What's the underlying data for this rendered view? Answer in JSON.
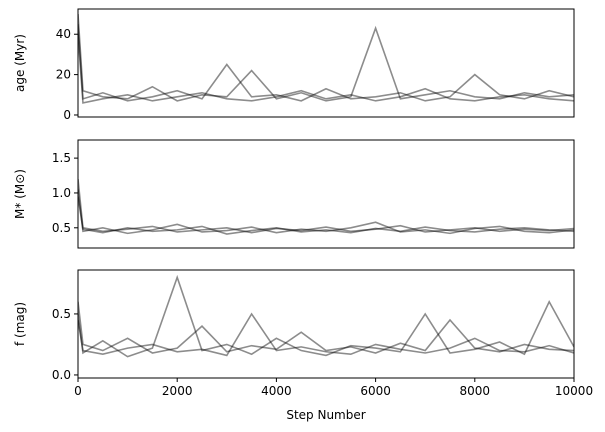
{
  "chart_data": [
    {
      "type": "line",
      "y_label": "age (Myr)",
      "x": [
        0,
        100,
        500,
        1000,
        1500,
        2000,
        2500,
        3000,
        3500,
        4000,
        4500,
        5000,
        5500,
        6000,
        6500,
        7000,
        7500,
        8000,
        8500,
        9000,
        9500,
        10000
      ],
      "xlim": [
        0,
        10000
      ],
      "ylim": [
        -1,
        52.5
      ],
      "yticks": [
        0,
        20,
        40
      ],
      "series": [
        {
          "color": "#000000",
          "values": [
            50,
            12,
            9,
            8,
            14,
            7,
            10,
            9,
            22,
            8,
            11,
            7,
            9,
            43,
            8,
            10,
            12,
            9,
            8,
            11,
            9,
            10
          ]
        },
        {
          "color": "#000000",
          "values": [
            45,
            8,
            11,
            7,
            9,
            12,
            8,
            25,
            9,
            10,
            7,
            13,
            8,
            9,
            11,
            7,
            9,
            20,
            10,
            8,
            12,
            9
          ]
        },
        {
          "color": "#000000",
          "values": [
            40,
            6,
            8,
            10,
            7,
            9,
            11,
            8,
            7,
            9,
            12,
            8,
            10,
            7,
            9,
            13,
            8,
            7,
            9,
            10,
            8,
            7
          ]
        }
      ]
    },
    {
      "type": "line",
      "y_label": "M* (M⊙)",
      "x": [
        0,
        100,
        500,
        1000,
        1500,
        2000,
        2500,
        3000,
        3500,
        4000,
        4500,
        5000,
        5500,
        6000,
        6500,
        7000,
        7500,
        8000,
        8500,
        9000,
        9500,
        10000
      ],
      "xlim": [
        0,
        10000
      ],
      "ylim": [
        0.21,
        1.76
      ],
      "yticks": [
        0.5,
        {
          "value": 1,
          "label": "1.0"
        },
        1.5
      ],
      "series": [
        {
          "color": "#000000",
          "values": [
            1.2,
            0.5,
            0.45,
            0.48,
            0.52,
            0.44,
            0.47,
            0.5,
            0.43,
            0.49,
            0.46,
            0.51,
            0.45,
            0.48,
            0.53,
            0.44,
            0.47,
            0.5,
            0.45,
            0.48,
            0.46,
            0.49
          ]
        },
        {
          "color": "#000000",
          "values": [
            1.05,
            0.45,
            0.5,
            0.42,
            0.47,
            0.55,
            0.44,
            0.46,
            0.51,
            0.43,
            0.48,
            0.45,
            0.5,
            0.58,
            0.44,
            0.47,
            0.42,
            0.49,
            0.52,
            0.45,
            0.43,
            0.47
          ]
        },
        {
          "color": "#000000",
          "values": [
            0.95,
            0.48,
            0.43,
            0.5,
            0.45,
            0.47,
            0.52,
            0.41,
            0.46,
            0.5,
            0.44,
            0.47,
            0.43,
            0.49,
            0.45,
            0.51,
            0.46,
            0.44,
            0.48,
            0.5,
            0.47,
            0.45
          ]
        }
      ]
    },
    {
      "type": "line",
      "y_label": "f (mag)",
      "x_label": "Step Number",
      "x": [
        0,
        100,
        500,
        1000,
        1500,
        2000,
        2500,
        3000,
        3500,
        4000,
        4500,
        5000,
        5500,
        6000,
        6500,
        7000,
        7500,
        8000,
        8500,
        9000,
        9500,
        10000
      ],
      "xlim": [
        0,
        10000
      ],
      "xticks": [
        0,
        2000,
        4000,
        6000,
        8000,
        10000
      ],
      "ylim": [
        -0.025,
        0.86
      ],
      "yticks": [
        {
          "value": 0,
          "label": "0.0"
        },
        0.5
      ],
      "series": [
        {
          "color": "#000000",
          "values": [
            0.6,
            0.25,
            0.2,
            0.3,
            0.18,
            0.22,
            0.4,
            0.19,
            0.24,
            0.21,
            0.35,
            0.2,
            0.23,
            0.18,
            0.26,
            0.2,
            0.45,
            0.22,
            0.19,
            0.25,
            0.21,
            0.2
          ]
        },
        {
          "color": "#000000",
          "values": [
            0.5,
            0.18,
            0.28,
            0.15,
            0.22,
            0.8,
            0.2,
            0.25,
            0.17,
            0.3,
            0.2,
            0.16,
            0.24,
            0.22,
            0.19,
            0.5,
            0.18,
            0.21,
            0.27,
            0.17,
            0.6,
            0.23
          ]
        },
        {
          "color": "#000000",
          "values": [
            0.45,
            0.2,
            0.17,
            0.22,
            0.25,
            0.19,
            0.21,
            0.16,
            0.5,
            0.2,
            0.23,
            0.19,
            0.17,
            0.25,
            0.21,
            0.18,
            0.22,
            0.3,
            0.2,
            0.19,
            0.24,
            0.18
          ]
        }
      ]
    }
  ]
}
